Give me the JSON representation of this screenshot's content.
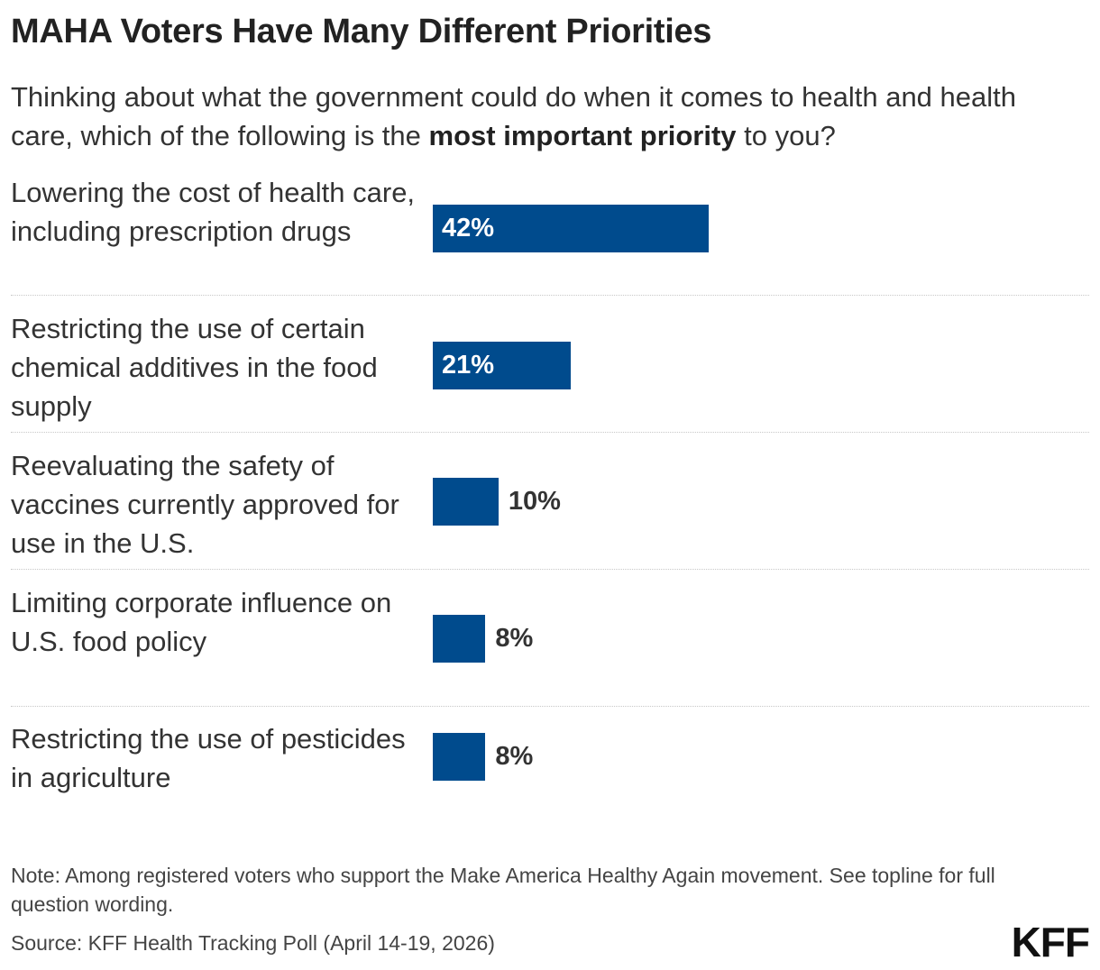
{
  "header": {
    "title": "MAHA Voters Have Many Different Priorities",
    "subtitle_before": "Thinking about what the government could do when it comes to health and health care, which of the following is the ",
    "subtitle_bold": "most important priority",
    "subtitle_after": " to you?"
  },
  "chart_data": {
    "type": "bar",
    "orientation": "horizontal",
    "categories": [
      "Lowering the cost of health care, including prescription drugs",
      "Restricting the use of certain chemical additives in the food supply",
      "Reevaluating the safety of vaccines currently approved for use in the U.S.",
      "Limiting corporate influence on\nU.S. food policy",
      "Restricting the use of pesticides in agriculture"
    ],
    "values": [
      42,
      21,
      10,
      8,
      8
    ],
    "value_labels": [
      "42%",
      "21%",
      "10%",
      "8%",
      "8%"
    ],
    "xlim": [
      0,
      100
    ],
    "grid": false,
    "bar_color": "#004b8d"
  },
  "footer": {
    "note": "Note: Among registered voters who support the Make America Healthy Again movement. See topline for full question wording.",
    "source": "Source: KFF Health Tracking Poll (April 14-19, 2026)",
    "logo": "KFF"
  },
  "colors": {
    "bar": "#004b8d",
    "text": "#222222"
  }
}
